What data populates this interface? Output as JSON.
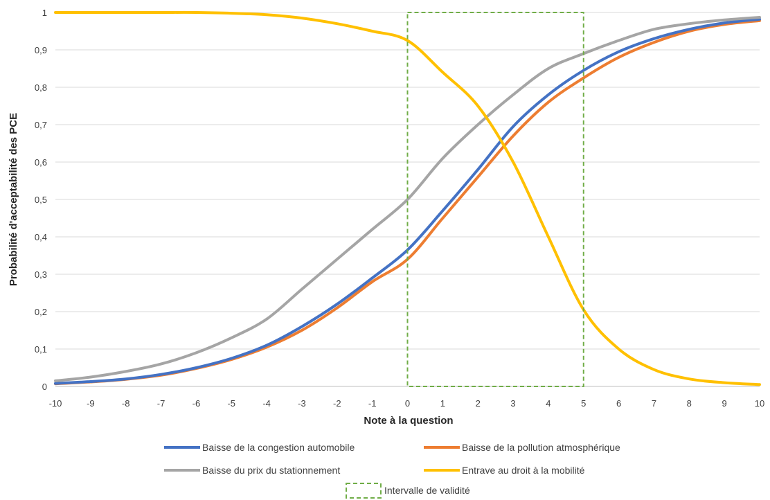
{
  "chart_data": {
    "type": "line",
    "title": "",
    "xlabel": "Note à la question",
    "ylabel": "Probabilité d'acceptabilité des PCE",
    "xlim": [
      -10,
      10
    ],
    "ylim": [
      0,
      1
    ],
    "x_ticks": [
      "-10",
      "-9",
      "-8",
      "-7",
      "-6",
      "-5",
      "-4",
      "-3",
      "-2",
      "-1",
      "0",
      "1",
      "2",
      "3",
      "4",
      "5",
      "6",
      "7",
      "8",
      "9",
      "10"
    ],
    "y_ticks": [
      "0",
      "0,1",
      "0,2",
      "0,3",
      "0,4",
      "0,5",
      "0,6",
      "0,7",
      "0,8",
      "0,9",
      "1"
    ],
    "grid": "horizontal",
    "legend_position": "bottom",
    "x": [
      -10,
      -9,
      -8,
      -7,
      -6,
      -5,
      -4,
      -3,
      -2,
      -1,
      0,
      1,
      2,
      3,
      4,
      5,
      6,
      7,
      8,
      9,
      10
    ],
    "series": [
      {
        "name": "Baisse de la congestion automobile",
        "color": "#4472C4",
        "values": [
          0.008,
          0.013,
          0.02,
          0.032,
          0.05,
          0.075,
          0.11,
          0.16,
          0.22,
          0.29,
          0.365,
          0.47,
          0.58,
          0.695,
          0.78,
          0.845,
          0.895,
          0.93,
          0.955,
          0.972,
          0.982
        ]
      },
      {
        "name": "Baisse de la pollution atmosphérique",
        "color": "#ED7D31",
        "values": [
          0.007,
          0.012,
          0.019,
          0.03,
          0.048,
          0.072,
          0.105,
          0.15,
          0.21,
          0.28,
          0.34,
          0.45,
          0.56,
          0.67,
          0.76,
          0.825,
          0.88,
          0.92,
          0.95,
          0.968,
          0.978
        ]
      },
      {
        "name": "Baisse du prix du stationnement",
        "color": "#A5A5A5",
        "values": [
          0.015,
          0.025,
          0.04,
          0.06,
          0.09,
          0.13,
          0.18,
          0.26,
          0.34,
          0.42,
          0.5,
          0.61,
          0.7,
          0.78,
          0.85,
          0.89,
          0.925,
          0.955,
          0.97,
          0.98,
          0.987
        ]
      },
      {
        "name": "Entrave au droit à la mobilité",
        "color": "#FFC000",
        "values": [
          1.0,
          1.0,
          1.0,
          1.0,
          1.0,
          0.998,
          0.994,
          0.985,
          0.97,
          0.95,
          0.925,
          0.84,
          0.75,
          0.6,
          0.4,
          0.205,
          0.1,
          0.045,
          0.02,
          0.01,
          0.005
        ]
      }
    ],
    "validity_interval": {
      "name": "Intervalle de validité",
      "x_range": [
        0,
        5
      ],
      "y_range": [
        0,
        1
      ],
      "color": "#70AD47",
      "style": "dashed"
    }
  }
}
